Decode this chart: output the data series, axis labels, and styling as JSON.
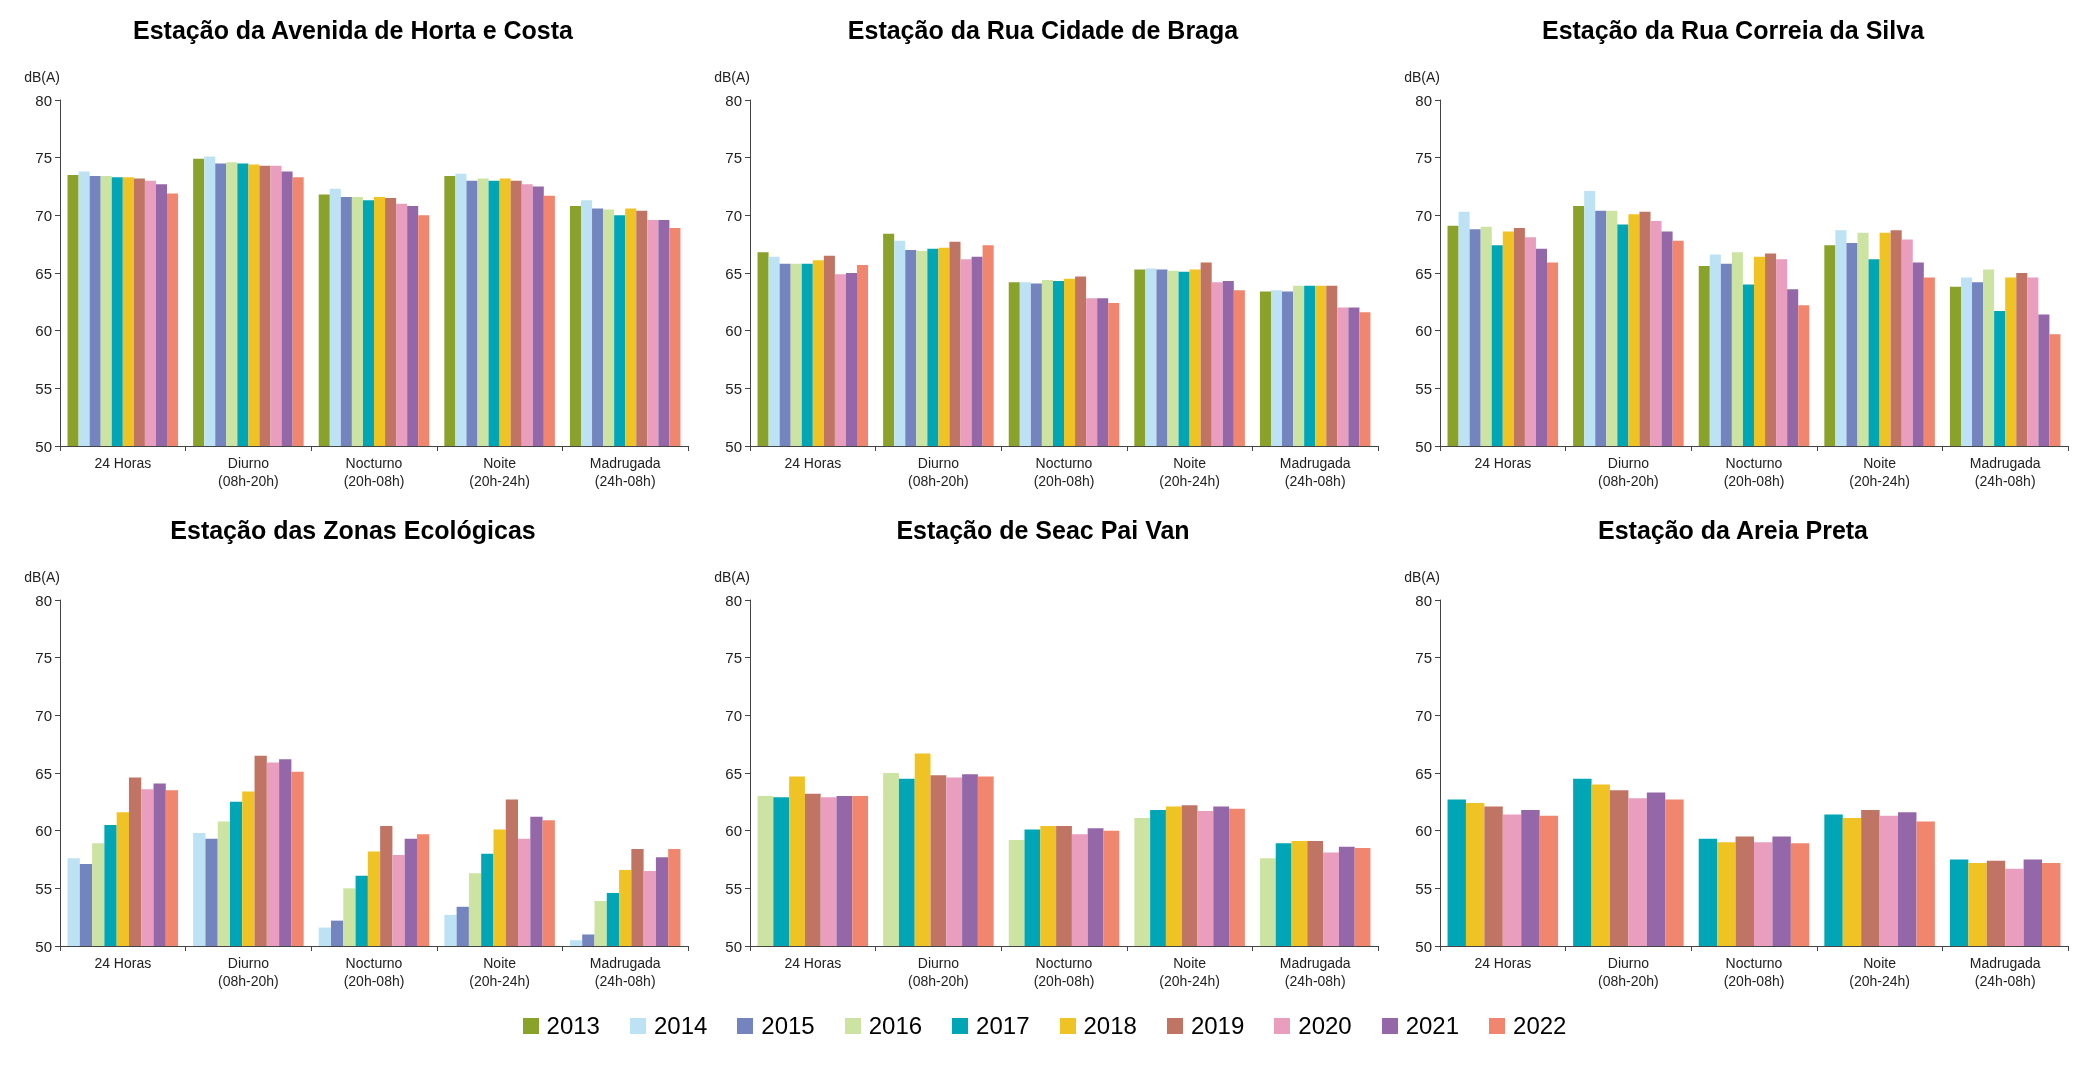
{
  "chart_data": [
    {
      "type": "bar",
      "title": "Estação da Avenida de Horta e Costa",
      "ylabel": "dB(A)",
      "categories": [
        "24 Horas",
        "Diurno\n(08h-20h)",
        "Nocturno\n(20h-08h)",
        "Noite\n(20h-24h)",
        "Madrugada\n(24h-08h)"
      ],
      "ylim": [
        50,
        80
      ],
      "yticks": [
        50,
        55,
        60,
        65,
        70,
        75,
        80
      ],
      "grid": false,
      "legend": "bottom",
      "series": [
        {
          "name": "2013",
          "color": "#8aa12a",
          "values": [
            73.5,
            74.9,
            71.8,
            73.4,
            70.8
          ]
        },
        {
          "name": "2014",
          "color": "#bde2f3",
          "values": [
            73.8,
            75.1,
            72.3,
            73.6,
            71.3
          ]
        },
        {
          "name": "2015",
          "color": "#7484bf",
          "values": [
            73.4,
            74.5,
            71.6,
            73.0,
            70.6
          ]
        },
        {
          "name": "2016",
          "color": "#cde3a2",
          "values": [
            73.4,
            74.6,
            71.6,
            73.2,
            70.5
          ]
        },
        {
          "name": "2017",
          "color": "#00a6b6",
          "values": [
            73.3,
            74.5,
            71.3,
            73.0,
            70.0
          ]
        },
        {
          "name": "2018",
          "color": "#f0c324",
          "values": [
            73.3,
            74.4,
            71.6,
            73.2,
            70.6
          ]
        },
        {
          "name": "2019",
          "color": "#c07463",
          "values": [
            73.2,
            74.3,
            71.5,
            73.0,
            70.4
          ]
        },
        {
          "name": "2020",
          "color": "#e99ebe",
          "values": [
            73.0,
            74.3,
            71.0,
            72.7,
            69.6
          ]
        },
        {
          "name": "2021",
          "color": "#9468a8",
          "values": [
            72.7,
            73.8,
            70.8,
            72.5,
            69.6
          ]
        },
        {
          "name": "2022",
          "color": "#ef866d",
          "values": [
            71.9,
            73.3,
            70.0,
            71.7,
            68.9
          ]
        }
      ]
    },
    {
      "type": "bar",
      "title": "Estação da Rua Cidade de Braga",
      "ylabel": "dB(A)",
      "categories": [
        "24 Horas",
        "Diurno\n(08h-20h)",
        "Nocturno\n(20h-08h)",
        "Noite\n(20h-24h)",
        "Madrugada\n(24h-08h)"
      ],
      "ylim": [
        50,
        80
      ],
      "yticks": [
        50,
        55,
        60,
        65,
        70,
        75,
        80
      ],
      "grid": false,
      "legend": "bottom",
      "series": [
        {
          "name": "2013",
          "color": "#8aa12a",
          "values": [
            66.8,
            68.4,
            64.2,
            65.3,
            63.4
          ]
        },
        {
          "name": "2014",
          "color": "#bde2f3",
          "values": [
            66.4,
            67.8,
            64.2,
            65.4,
            63.5
          ]
        },
        {
          "name": "2015",
          "color": "#7484bf",
          "values": [
            65.8,
            67.0,
            64.1,
            65.3,
            63.4
          ]
        },
        {
          "name": "2016",
          "color": "#cde3a2",
          "values": [
            65.8,
            66.9,
            64.4,
            65.2,
            63.9
          ]
        },
        {
          "name": "2017",
          "color": "#00a6b6",
          "values": [
            65.8,
            67.1,
            64.3,
            65.1,
            63.9
          ]
        },
        {
          "name": "2018",
          "color": "#f0c324",
          "values": [
            66.1,
            67.2,
            64.5,
            65.3,
            63.9
          ]
        },
        {
          "name": "2019",
          "color": "#c07463",
          "values": [
            66.5,
            67.7,
            64.7,
            65.9,
            63.9
          ]
        },
        {
          "name": "2020",
          "color": "#e99ebe",
          "values": [
            64.9,
            66.2,
            62.8,
            64.2,
            62.0
          ]
        },
        {
          "name": "2021",
          "color": "#9468a8",
          "values": [
            65.0,
            66.4,
            62.8,
            64.3,
            62.0
          ]
        },
        {
          "name": "2022",
          "color": "#ef866d",
          "values": [
            65.7,
            67.4,
            62.4,
            63.5,
            61.6
          ]
        }
      ]
    },
    {
      "type": "bar",
      "title": "Estação da Rua Correia da Silva",
      "ylabel": "dB(A)",
      "categories": [
        "24 Horas",
        "Diurno\n(08h-20h)",
        "Nocturno\n(20h-08h)",
        "Noite\n(20h-24h)",
        "Madrugada\n(24h-08h)"
      ],
      "ylim": [
        50,
        80
      ],
      "yticks": [
        50,
        55,
        60,
        65,
        70,
        75,
        80
      ],
      "grid": false,
      "legend": "bottom",
      "series": [
        {
          "name": "2013",
          "color": "#8aa12a",
          "values": [
            69.1,
            70.8,
            65.6,
            67.4,
            63.8
          ]
        },
        {
          "name": "2014",
          "color": "#bde2f3",
          "values": [
            70.3,
            72.1,
            66.6,
            68.7,
            64.6
          ]
        },
        {
          "name": "2015",
          "color": "#7484bf",
          "values": [
            68.8,
            70.4,
            65.8,
            67.6,
            64.2
          ]
        },
        {
          "name": "2016",
          "color": "#cde3a2",
          "values": [
            69.0,
            70.4,
            66.8,
            68.5,
            65.3
          ]
        },
        {
          "name": "2017",
          "color": "#00a6b6",
          "values": [
            67.4,
            69.2,
            64.0,
            66.2,
            61.7
          ]
        },
        {
          "name": "2018",
          "color": "#f0c324",
          "values": [
            68.6,
            70.1,
            66.4,
            68.5,
            64.6
          ]
        },
        {
          "name": "2019",
          "color": "#c07463",
          "values": [
            68.9,
            70.3,
            66.7,
            68.7,
            65.0
          ]
        },
        {
          "name": "2020",
          "color": "#e99ebe",
          "values": [
            68.1,
            69.5,
            66.2,
            67.9,
            64.6
          ]
        },
        {
          "name": "2021",
          "color": "#9468a8",
          "values": [
            67.1,
            68.6,
            63.6,
            65.9,
            61.4
          ]
        },
        {
          "name": "2022",
          "color": "#ef866d",
          "values": [
            65.9,
            67.8,
            62.2,
            64.6,
            59.7
          ]
        }
      ]
    },
    {
      "type": "bar",
      "title": "Estação das Zonas Ecológicas",
      "ylabel": "dB(A)",
      "categories": [
        "24 Horas",
        "Diurno\n(08h-20h)",
        "Nocturno\n(20h-08h)",
        "Noite\n(20h-24h)",
        "Madrugada\n(24h-08h)"
      ],
      "ylim": [
        50,
        80
      ],
      "yticks": [
        50,
        55,
        60,
        65,
        70,
        75,
        80
      ],
      "grid": false,
      "legend": "bottom",
      "series": [
        {
          "name": "2014",
          "color": "#bde2f3",
          "values": [
            57.6,
            59.8,
            51.6,
            52.7,
            50.5
          ]
        },
        {
          "name": "2015",
          "color": "#7484bf",
          "values": [
            57.1,
            59.3,
            52.2,
            53.4,
            51.0
          ]
        },
        {
          "name": "2016",
          "color": "#cde3a2",
          "values": [
            58.9,
            60.8,
            55.0,
            56.3,
            53.9
          ]
        },
        {
          "name": "2017",
          "color": "#00a6b6",
          "values": [
            60.5,
            62.5,
            56.1,
            58.0,
            54.6
          ]
        },
        {
          "name": "2018",
          "color": "#f0c324",
          "values": [
            61.6,
            63.4,
            58.2,
            60.1,
            56.6
          ]
        },
        {
          "name": "2019",
          "color": "#c07463",
          "values": [
            64.6,
            66.5,
            60.4,
            62.7,
            58.4
          ]
        },
        {
          "name": "2020",
          "color": "#e99ebe",
          "values": [
            63.6,
            65.9,
            57.9,
            59.3,
            56.5
          ]
        },
        {
          "name": "2021",
          "color": "#9468a8",
          "values": [
            64.1,
            66.2,
            59.3,
            61.2,
            57.7
          ]
        },
        {
          "name": "2022",
          "color": "#ef866d",
          "values": [
            63.5,
            65.1,
            59.7,
            60.9,
            58.4
          ]
        }
      ]
    },
    {
      "type": "bar",
      "title": "Estação de Seac Pai Van",
      "ylabel": "dB(A)",
      "categories": [
        "24 Horas",
        "Diurno\n(08h-20h)",
        "Nocturno\n(20h-08h)",
        "Noite\n(20h-24h)",
        "Madrugada\n(24h-08h)"
      ],
      "ylim": [
        50,
        80
      ],
      "yticks": [
        50,
        55,
        60,
        65,
        70,
        75,
        80
      ],
      "grid": false,
      "legend": "bottom",
      "series": [
        {
          "name": "2016",
          "color": "#cde3a2",
          "values": [
            63.0,
            65.0,
            59.2,
            61.1,
            57.6
          ]
        },
        {
          "name": "2017",
          "color": "#00a6b6",
          "values": [
            62.9,
            64.5,
            60.1,
            61.8,
            58.9
          ]
        },
        {
          "name": "2018",
          "color": "#f0c324",
          "values": [
            64.7,
            66.7,
            60.4,
            62.1,
            59.1
          ]
        },
        {
          "name": "2019",
          "color": "#c07463",
          "values": [
            63.2,
            64.8,
            60.4,
            62.2,
            59.1
          ]
        },
        {
          "name": "2020",
          "color": "#e99ebe",
          "values": [
            62.9,
            64.6,
            59.7,
            61.7,
            58.1
          ]
        },
        {
          "name": "2021",
          "color": "#9468a8",
          "values": [
            63.0,
            64.9,
            60.2,
            62.1,
            58.6
          ]
        },
        {
          "name": "2022",
          "color": "#ef866d",
          "values": [
            63.0,
            64.7,
            60.0,
            61.9,
            58.5
          ]
        }
      ]
    },
    {
      "type": "bar",
      "title": "Estação da Areia Preta",
      "ylabel": "dB(A)",
      "categories": [
        "24 Horas",
        "Diurno\n(08h-20h)",
        "Nocturno\n(20h-08h)",
        "Noite\n(20h-24h)",
        "Madrugada\n(24h-08h)"
      ],
      "ylim": [
        50,
        80
      ],
      "yticks": [
        50,
        55,
        60,
        65,
        70,
        75,
        80
      ],
      "grid": false,
      "legend": "bottom",
      "series": [
        {
          "name": "2017",
          "color": "#00a6b6",
          "values": [
            62.7,
            64.5,
            59.3,
            61.4,
            57.5
          ]
        },
        {
          "name": "2018",
          "color": "#f0c324",
          "values": [
            62.4,
            64.0,
            59.0,
            61.1,
            57.2
          ]
        },
        {
          "name": "2019",
          "color": "#c07463",
          "values": [
            62.1,
            63.5,
            59.5,
            61.8,
            57.4
          ]
        },
        {
          "name": "2020",
          "color": "#e99ebe",
          "values": [
            61.4,
            62.8,
            59.0,
            61.3,
            56.7
          ]
        },
        {
          "name": "2021",
          "color": "#9468a8",
          "values": [
            61.8,
            63.3,
            59.5,
            61.6,
            57.5
          ]
        },
        {
          "name": "2022",
          "color": "#ef866d",
          "values": [
            61.3,
            62.7,
            58.9,
            60.8,
            57.2
          ]
        }
      ]
    }
  ]
}
